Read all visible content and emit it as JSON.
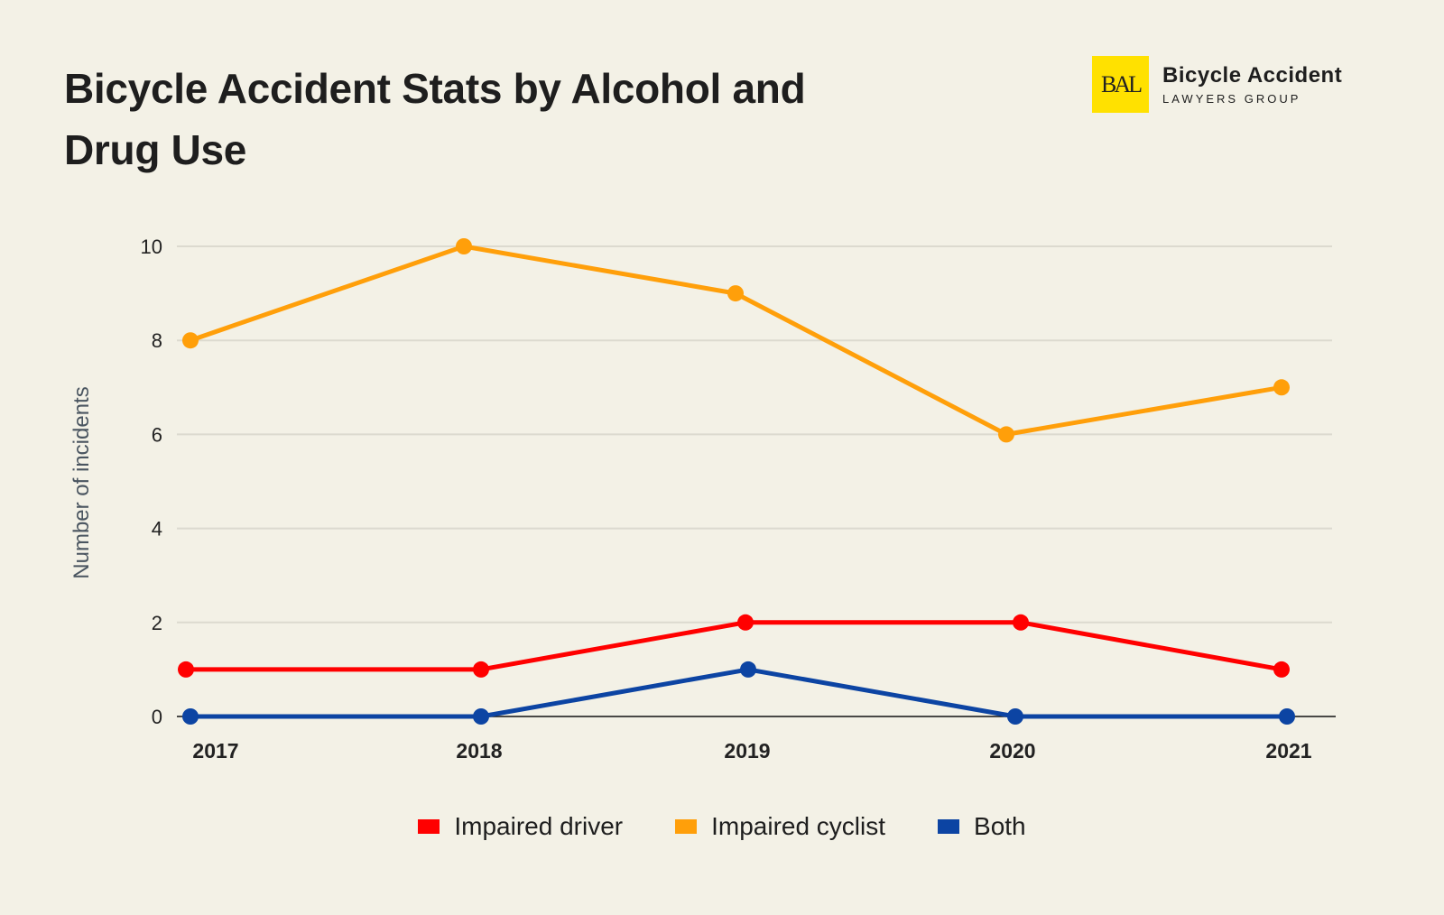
{
  "title": "Bicycle Accident Stats by Alcohol and Drug Use",
  "logo": {
    "mark": "BAL",
    "line1": "Bicycle Accident",
    "line2": "LAWYERS GROUP",
    "color": "#ffe100"
  },
  "chart_data": {
    "type": "line",
    "title": "Bicycle Accident Stats by Alcohol and Drug Use",
    "xlabel": "",
    "ylabel": "Number of incidents",
    "categories": [
      "2017",
      "2018",
      "2019",
      "2020",
      "2021"
    ],
    "ylim": [
      0,
      10
    ],
    "yticks": [
      0,
      2,
      4,
      6,
      8,
      10
    ],
    "grid": true,
    "legend_position": "bottom",
    "series": [
      {
        "name": "Impaired driver",
        "color": "#ff0000",
        "values": [
          1,
          1,
          2,
          2,
          1
        ]
      },
      {
        "name": "Impaired cyclist",
        "color": "#ff9f0a",
        "values": [
          8,
          10,
          9,
          6,
          7
        ]
      },
      {
        "name": "Both",
        "color": "#0c44a3",
        "values": [
          0,
          0,
          1,
          0,
          0
        ]
      }
    ]
  }
}
